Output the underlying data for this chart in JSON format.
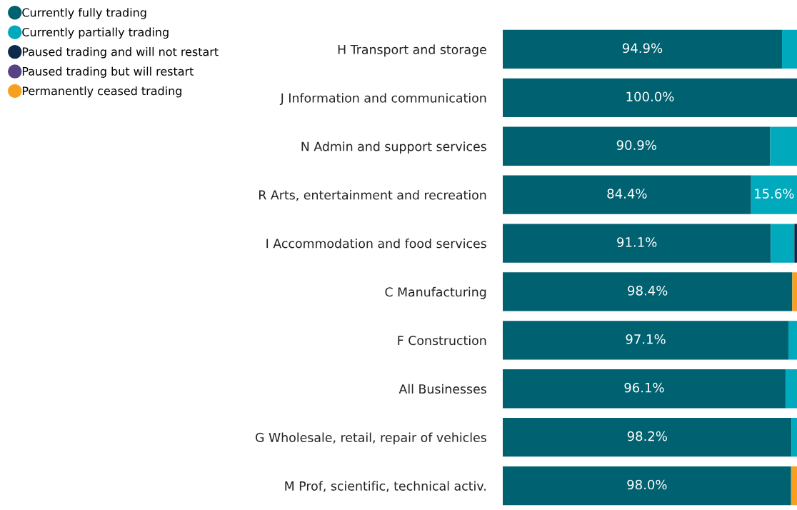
{
  "chart_data": {
    "type": "bar",
    "orientation": "horizontal",
    "stacked": true,
    "legend": "top left",
    "grid": false,
    "tick_labels": "y",
    "xlim": [
      0,
      100
    ],
    "categories": [
      "H Transport and storage",
      "J Information and communication",
      "N Admin and support services",
      "R Arts, entertainment and recreation",
      "I Accommodation and food services",
      "C Manufacturing",
      "F Construction",
      "All Businesses",
      "G Wholesale, retail, repair of vehicles",
      "M Prof, scientific, technical activ."
    ],
    "series": [
      {
        "name": "Currently fully trading",
        "color": "#006170",
        "values": [
          94.9,
          100.0,
          90.9,
          84.4,
          91.1,
          98.4,
          97.1,
          96.1,
          98.2,
          98.0
        ],
        "value_labels": [
          "94.9%",
          "100.0%",
          "90.9%",
          "84.4%",
          "91.1%",
          "98.4%",
          "97.1%",
          "96.1%",
          "98.2%",
          "98.0%"
        ]
      },
      {
        "name": "Currently partially trading",
        "color": "#00a9bc",
        "values": [
          5.1,
          0,
          9.1,
          15.6,
          8.0,
          0,
          2.9,
          3.9,
          1.8,
          0
        ],
        "value_labels": [
          null,
          null,
          null,
          "15.6%",
          null,
          null,
          null,
          null,
          null,
          null
        ]
      },
      {
        "name": "Paused trading and will not restart",
        "color": "#0d2a4a",
        "values": [
          0,
          0,
          0,
          0,
          0.9,
          0,
          0,
          0,
          0,
          0
        ]
      },
      {
        "name": "Paused trading but will restart",
        "color": "#574384",
        "values": [
          0,
          0,
          0,
          0,
          0,
          0,
          0,
          0,
          0,
          0
        ]
      },
      {
        "name": "Permanently ceased trading",
        "color": "#f7a01f",
        "values": [
          0,
          0,
          0,
          0,
          0,
          1.6,
          0,
          0,
          0,
          2.0
        ]
      }
    ]
  }
}
